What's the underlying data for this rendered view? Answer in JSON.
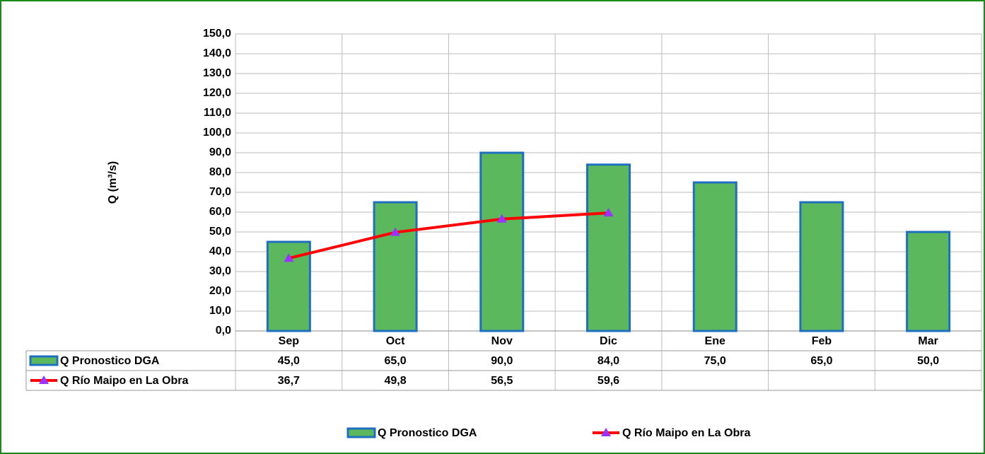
{
  "chart_data": {
    "type": "bar",
    "y_label": "Q (m³/s)",
    "categories": [
      "Sep",
      "Oct",
      "Nov",
      "Dic",
      "Ene",
      "Feb",
      "Mar"
    ],
    "series": [
      {
        "name": "Q Pronostico DGA",
        "type": "bar",
        "color": "#5cb85c",
        "edge_color": "#1f6fc0",
        "values": [
          45.0,
          65.0,
          90.0,
          84.0,
          75.0,
          65.0,
          50.0
        ],
        "value_labels": [
          "45,0",
          "65,0",
          "90,0",
          "84,0",
          "75,0",
          "65,0",
          "50,0"
        ]
      },
      {
        "name": "Q Río Maipo en La Obra",
        "type": "line",
        "color": "#ff0000",
        "marker_color": "#9933ff",
        "values": [
          36.7,
          49.8,
          56.5,
          59.6,
          null,
          null,
          null
        ],
        "value_labels": [
          "36,7",
          "49,8",
          "56,5",
          "59,6",
          null,
          null,
          null
        ]
      }
    ],
    "ylim": [
      0,
      150
    ],
    "yticks": [
      {
        "value": 0,
        "label": "0,0"
      },
      {
        "value": 10,
        "label": "10,0"
      },
      {
        "value": 20,
        "label": "20,0"
      },
      {
        "value": 30,
        "label": "30,0"
      },
      {
        "value": 40,
        "label": "40,0"
      },
      {
        "value": 50,
        "label": "50,0"
      },
      {
        "value": 60,
        "label": "60,0"
      },
      {
        "value": 70,
        "label": "70,0"
      },
      {
        "value": 80,
        "label": "80,0"
      },
      {
        "value": 90,
        "label": "90,0"
      },
      {
        "value": 100,
        "label": "100,0"
      },
      {
        "value": 110,
        "label": "110,0"
      },
      {
        "value": 120,
        "label": "120,0"
      },
      {
        "value": 130,
        "label": "130,0"
      },
      {
        "value": 140,
        "label": "140,0"
      },
      {
        "value": 150,
        "label": "150,0"
      }
    ],
    "grid": true,
    "legend": "bottom"
  }
}
